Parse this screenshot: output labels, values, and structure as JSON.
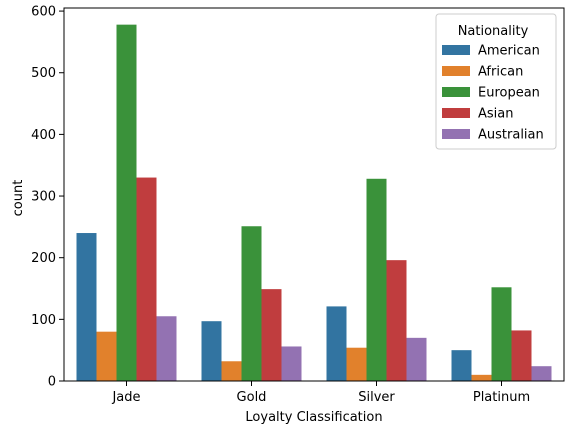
{
  "chart_data": {
    "type": "bar",
    "title": "",
    "xlabel": "Loyalty Classification",
    "ylabel": "count",
    "categories": [
      "Jade",
      "Gold",
      "Silver",
      "Platinum"
    ],
    "ylim": [
      0,
      605
    ],
    "yticks": [
      0,
      100,
      200,
      300,
      400,
      500,
      600
    ],
    "grid": false,
    "legend": {
      "title": "Nationality",
      "placement": "top-right"
    },
    "series": [
      {
        "name": "American",
        "color": "#3274a1",
        "values": [
          240,
          97,
          121,
          50
        ]
      },
      {
        "name": "African",
        "color": "#e1812c",
        "values": [
          80,
          32,
          54,
          10
        ]
      },
      {
        "name": "European",
        "color": "#3a923a",
        "values": [
          578,
          251,
          328,
          152
        ]
      },
      {
        "name": "Asian",
        "color": "#c03d3e",
        "values": [
          330,
          149,
          196,
          82
        ]
      },
      {
        "name": "Australian",
        "color": "#9372b2",
        "values": [
          105,
          56,
          70,
          24
        ]
      }
    ]
  }
}
